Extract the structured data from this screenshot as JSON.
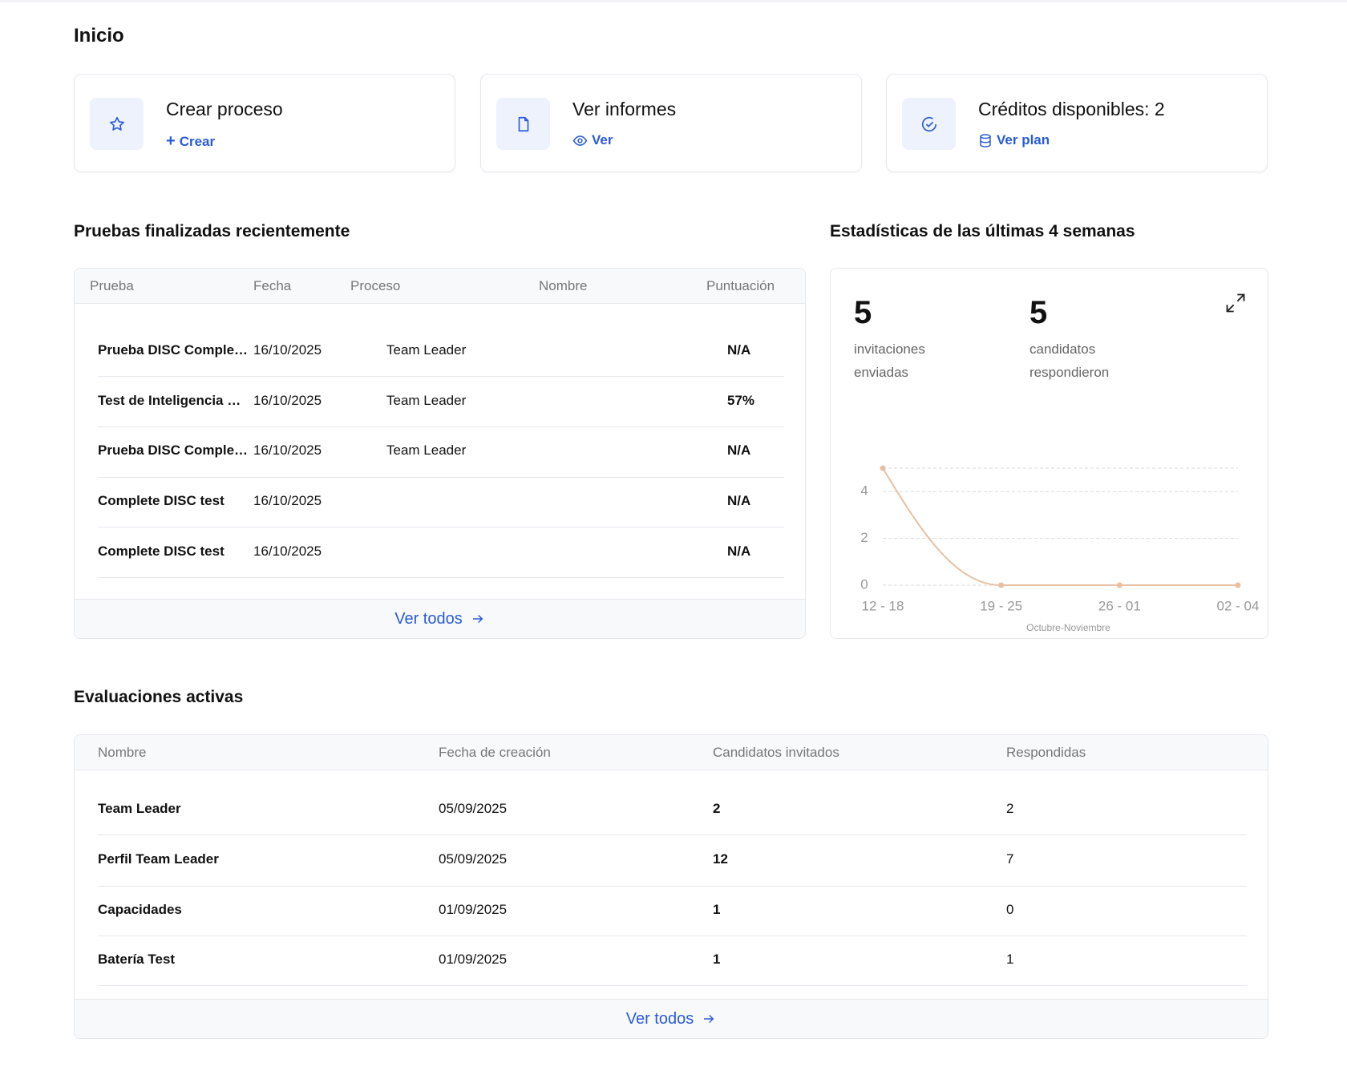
{
  "header": {
    "title": "Inicio"
  },
  "cards": [
    {
      "title": "Crear proceso",
      "action": "Crear"
    },
    {
      "title": "Ver informes",
      "action": "Ver"
    },
    {
      "title": "Créditos disponibles: 2",
      "action": "Ver plan"
    }
  ],
  "recent_tests": {
    "title": "Pruebas finalizadas recientemente",
    "columns": [
      "Prueba",
      "Fecha",
      "Proceso",
      "Nombre",
      "Puntuación"
    ],
    "rows": [
      [
        "Prueba DISC Comple…",
        "16/10/2025",
        "Team Leader",
        null,
        "N/A"
      ],
      [
        "Test de Inteligencia …",
        "16/10/2025",
        "Team Leader",
        null,
        "57%"
      ],
      [
        "Prueba DISC Comple…",
        "16/10/2025",
        "Team Leader",
        null,
        "N/A"
      ],
      [
        "Complete DISC test",
        "16/10/2025",
        null,
        null,
        "N/A"
      ],
      [
        "Complete DISC test",
        "16/10/2025",
        null,
        null,
        "N/A"
      ]
    ],
    "footer": "Ver todos"
  },
  "stats": {
    "title": "Estadísticas de las últimas 4 semanas",
    "metrics": [
      {
        "value": "5",
        "label": "invitaciones enviadas"
      },
      {
        "value": "5",
        "label": "candidatos respondieron"
      }
    ]
  },
  "chart_data": {
    "type": "line",
    "categories": [
      "12 - 18",
      "19 - 25",
      "26 - 01",
      "02 - 04"
    ],
    "values": [
      5,
      0,
      0,
      0
    ],
    "color": "#e8bfa0",
    "x_label": "Octubre-Noviembre",
    "ylim": [
      0,
      5
    ],
    "yticks": [
      0,
      2,
      4
    ],
    "grid": true
  },
  "active": {
    "title": "Evaluaciones activas",
    "columns": [
      "Nombre",
      "Fecha de creación",
      "Candidatos invitados",
      "Respondidas"
    ],
    "rows": [
      [
        "Team Leader",
        "05/09/2025",
        "2",
        "2"
      ],
      [
        "Perfil Team Leader",
        "05/09/2025",
        "12",
        "7"
      ],
      [
        "Capacidades",
        "01/09/2025",
        "1",
        "0"
      ],
      [
        "Batería Test",
        "01/09/2025",
        "1",
        "1"
      ]
    ],
    "footer": "Ver todos"
  }
}
